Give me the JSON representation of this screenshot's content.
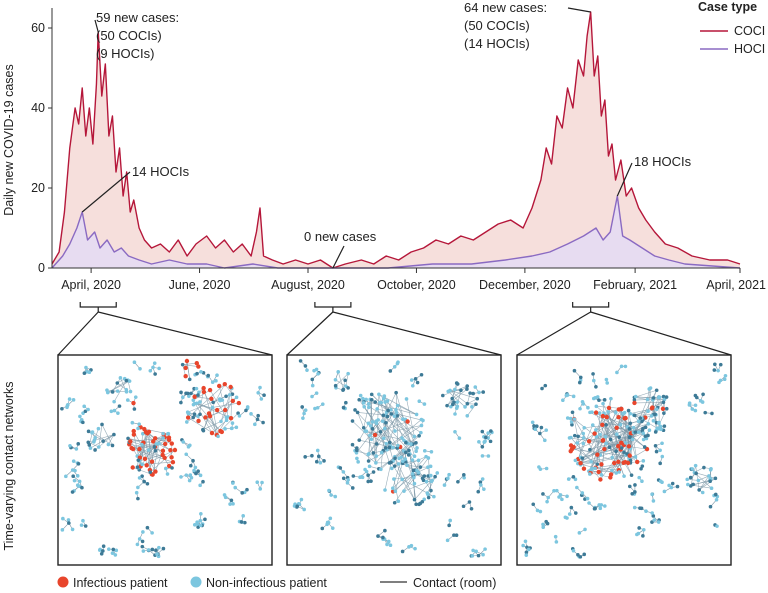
{
  "chart_data": {
    "type": "line",
    "ylabel": "Daily new COVID-19 cases",
    "yticks": [
      0,
      20,
      40,
      60
    ],
    "ylim": [
      0,
      65
    ],
    "x_start": "2020-03-10",
    "x_end": "2021-04-01",
    "xticks": [
      {
        "date": "2020-04-01",
        "label": "April, 2020"
      },
      {
        "date": "2020-06-01",
        "label": "June, 2020"
      },
      {
        "date": "2020-08-01",
        "label": "August, 2020"
      },
      {
        "date": "2020-10-01",
        "label": "October, 2020"
      },
      {
        "date": "2020-12-01",
        "label": "December, 2020"
      },
      {
        "date": "2021-02-01",
        "label": "February, 2021"
      },
      {
        "date": "2021-04-01",
        "label": "April, 2021"
      }
    ],
    "legend_title": "Case type",
    "legend_position": "top-right",
    "series": [
      {
        "name": "COCI",
        "color": "#b5173a",
        "fill": "#f5d9d6",
        "points": [
          [
            "2020-03-10",
            1
          ],
          [
            "2020-03-14",
            4
          ],
          [
            "2020-03-17",
            14
          ],
          [
            "2020-03-20",
            30
          ],
          [
            "2020-03-23",
            40
          ],
          [
            "2020-03-25",
            36
          ],
          [
            "2020-03-27",
            45
          ],
          [
            "2020-03-29",
            33
          ],
          [
            "2020-03-31",
            40
          ],
          [
            "2020-04-02",
            31
          ],
          [
            "2020-04-04",
            46
          ],
          [
            "2020-04-05",
            59
          ],
          [
            "2020-04-07",
            43
          ],
          [
            "2020-04-09",
            51
          ],
          [
            "2020-04-11",
            33
          ],
          [
            "2020-04-13",
            38
          ],
          [
            "2020-04-15",
            24
          ],
          [
            "2020-04-17",
            30
          ],
          [
            "2020-04-19",
            18
          ],
          [
            "2020-04-21",
            24
          ],
          [
            "2020-04-23",
            14
          ],
          [
            "2020-04-25",
            17
          ],
          [
            "2020-04-28",
            10
          ],
          [
            "2020-05-01",
            7
          ],
          [
            "2020-05-05",
            5
          ],
          [
            "2020-05-10",
            6
          ],
          [
            "2020-05-15",
            4
          ],
          [
            "2020-05-20",
            7
          ],
          [
            "2020-05-25",
            3
          ],
          [
            "2020-05-30",
            6
          ],
          [
            "2020-06-05",
            8
          ],
          [
            "2020-06-10",
            5
          ],
          [
            "2020-06-15",
            7
          ],
          [
            "2020-06-20",
            4
          ],
          [
            "2020-06-25",
            6
          ],
          [
            "2020-06-30",
            3
          ],
          [
            "2020-07-03",
            9
          ],
          [
            "2020-07-05",
            15
          ],
          [
            "2020-07-07",
            3
          ],
          [
            "2020-07-12",
            2
          ],
          [
            "2020-07-18",
            1
          ],
          [
            "2020-07-25",
            2
          ],
          [
            "2020-08-01",
            1
          ],
          [
            "2020-08-08",
            2
          ],
          [
            "2020-08-15",
            0
          ],
          [
            "2020-08-22",
            1
          ],
          [
            "2020-08-31",
            2
          ],
          [
            "2020-09-07",
            1
          ],
          [
            "2020-09-14",
            3
          ],
          [
            "2020-09-21",
            2
          ],
          [
            "2020-09-28",
            4
          ],
          [
            "2020-10-05",
            5
          ],
          [
            "2020-10-12",
            7
          ],
          [
            "2020-10-19",
            6
          ],
          [
            "2020-10-26",
            8
          ],
          [
            "2020-11-02",
            7
          ],
          [
            "2020-11-09",
            9
          ],
          [
            "2020-11-16",
            11
          ],
          [
            "2020-11-23",
            12
          ],
          [
            "2020-11-30",
            10
          ],
          [
            "2020-12-05",
            15
          ],
          [
            "2020-12-10",
            22
          ],
          [
            "2020-12-13",
            30
          ],
          [
            "2020-12-16",
            26
          ],
          [
            "2020-12-19",
            38
          ],
          [
            "2020-12-22",
            35
          ],
          [
            "2020-12-25",
            45
          ],
          [
            "2020-12-28",
            40
          ],
          [
            "2020-12-31",
            52
          ],
          [
            "2021-01-03",
            48
          ],
          [
            "2021-01-05",
            58
          ],
          [
            "2021-01-07",
            64
          ],
          [
            "2021-01-09",
            48
          ],
          [
            "2021-01-11",
            53
          ],
          [
            "2021-01-13",
            38
          ],
          [
            "2021-01-15",
            42
          ],
          [
            "2021-01-17",
            28
          ],
          [
            "2021-01-19",
            31
          ],
          [
            "2021-01-21",
            22
          ],
          [
            "2021-01-24",
            27
          ],
          [
            "2021-01-27",
            18
          ],
          [
            "2021-01-30",
            20
          ],
          [
            "2021-02-03",
            15
          ],
          [
            "2021-02-07",
            12
          ],
          [
            "2021-02-12",
            9
          ],
          [
            "2021-02-18",
            6
          ],
          [
            "2021-02-25",
            5
          ],
          [
            "2021-03-05",
            3
          ],
          [
            "2021-03-15",
            2
          ],
          [
            "2021-03-25",
            2
          ],
          [
            "2021-04-01",
            1
          ]
        ]
      },
      {
        "name": "HOCI",
        "color": "#8a6ac2",
        "fill": "#e6dcf3",
        "points": [
          [
            "2020-03-10",
            0
          ],
          [
            "2020-03-16",
            3
          ],
          [
            "2020-03-20",
            6
          ],
          [
            "2020-03-24",
            10
          ],
          [
            "2020-03-27",
            14
          ],
          [
            "2020-03-30",
            7
          ],
          [
            "2020-04-03",
            9
          ],
          [
            "2020-04-06",
            5
          ],
          [
            "2020-04-10",
            7
          ],
          [
            "2020-04-14",
            4
          ],
          [
            "2020-04-18",
            5
          ],
          [
            "2020-04-22",
            3
          ],
          [
            "2020-04-28",
            2
          ],
          [
            "2020-05-05",
            1
          ],
          [
            "2020-05-15",
            2
          ],
          [
            "2020-05-25",
            1
          ],
          [
            "2020-06-05",
            1
          ],
          [
            "2020-06-15",
            0
          ],
          [
            "2020-07-01",
            1
          ],
          [
            "2020-07-15",
            0
          ],
          [
            "2020-08-15",
            0
          ],
          [
            "2020-09-15",
            0
          ],
          [
            "2020-10-10",
            1
          ],
          [
            "2020-11-01",
            1
          ],
          [
            "2020-11-20",
            2
          ],
          [
            "2020-12-05",
            3
          ],
          [
            "2020-12-15",
            4
          ],
          [
            "2020-12-25",
            6
          ],
          [
            "2021-01-03",
            8
          ],
          [
            "2021-01-10",
            10
          ],
          [
            "2021-01-14",
            7
          ],
          [
            "2021-01-18",
            9
          ],
          [
            "2021-01-22",
            18
          ],
          [
            "2021-01-25",
            8
          ],
          [
            "2021-01-29",
            7
          ],
          [
            "2021-02-05",
            5
          ],
          [
            "2021-02-12",
            3
          ],
          [
            "2021-02-20",
            2
          ],
          [
            "2021-03-01",
            1
          ],
          [
            "2021-04-01",
            0
          ]
        ]
      }
    ],
    "annotations": [
      {
        "lines": [
          "59 new cases:",
          "(50 COCIs)",
          "(9 HOCIs)"
        ],
        "date": "2020-04-05",
        "value": 59
      },
      {
        "lines": [
          "14 HOCIs"
        ],
        "date": "2020-03-27",
        "value": 14
      },
      {
        "lines": [
          "0 new cases"
        ],
        "date": "2020-08-15",
        "value": 0
      },
      {
        "lines": [
          "64 new cases:",
          "(50 COCIs)",
          "(14 HOCIs)"
        ],
        "date": "2021-01-07",
        "value": 64
      },
      {
        "lines": [
          "18 HOCIs"
        ],
        "date": "2021-01-22",
        "value": 18
      }
    ]
  },
  "networks": {
    "ylabel": "Time-varying contact networks",
    "panels": [
      {
        "name": "panel-april-2020",
        "date": "2020-04-05"
      },
      {
        "name": "panel-august-2020",
        "date": "2020-08-15"
      },
      {
        "name": "panel-january-2021",
        "date": "2021-01-07"
      }
    ],
    "legend": {
      "infectious": "Infectious patient",
      "non_infectious": "Non-infectious patient",
      "contact": "Contact (room)"
    },
    "colors": {
      "infectious": "#e8452c",
      "non_infectious": "#7cc6df",
      "node_dark": "#3d7a96",
      "edge": "#7e98a8"
    }
  }
}
